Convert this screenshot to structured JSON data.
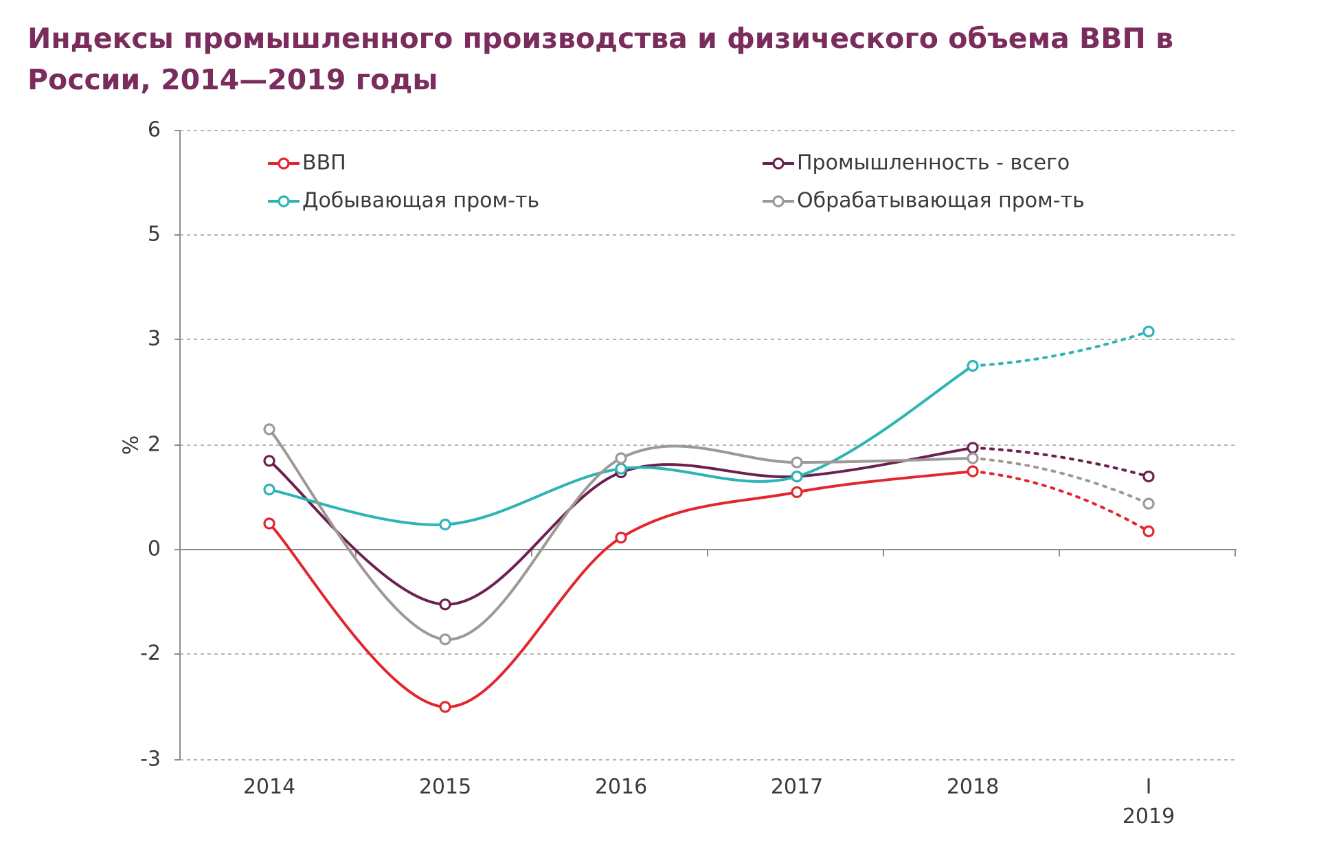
{
  "chart_data": {
    "type": "line",
    "title": "Индексы промышленного производства и физического объема ВВП в России, 2014—2019 годы",
    "xlabel": "",
    "ylabel": "%",
    "categories": [
      {
        "line1": "2014",
        "line2": ""
      },
      {
        "line1": "2015",
        "line2": ""
      },
      {
        "line1": "2016",
        "line2": ""
      },
      {
        "line1": "2017",
        "line2": ""
      },
      {
        "line1": "2018",
        "line2": ""
      },
      {
        "line1": "I",
        "line2": "2019"
      }
    ],
    "y_ticks": [
      {
        "value": 6,
        "label": "6"
      },
      {
        "value": 5,
        "label": "5"
      },
      {
        "value": 3,
        "label": "3"
      },
      {
        "value": 2,
        "label": "2"
      },
      {
        "value": 0,
        "label": "0"
      },
      {
        "value": -2,
        "label": "-2"
      },
      {
        "value": -3,
        "label": "-3"
      }
    ],
    "dotted_from_index": 4,
    "legend_position": "top",
    "series": [
      {
        "name": "ВВП",
        "color": "#e3262d",
        "values": [
          0.5,
          -2.5,
          0.23,
          1.1,
          1.5,
          0.35
        ]
      },
      {
        "name": "Промышленность  - всего",
        "color": "#6b2150",
        "values": [
          1.7,
          -1.05,
          1.48,
          1.4,
          1.95,
          1.4
        ]
      },
      {
        "name": "Добывающая пром-ть",
        "color": "#2fb4b6",
        "values": [
          1.15,
          0.48,
          1.55,
          1.4,
          2.75,
          3.15
        ]
      },
      {
        "name": "Обрабатывающая пром-ть",
        "color": "#9e9896",
        "values": [
          2.15,
          -1.72,
          1.75,
          1.67,
          1.75,
          0.88
        ]
      }
    ]
  }
}
